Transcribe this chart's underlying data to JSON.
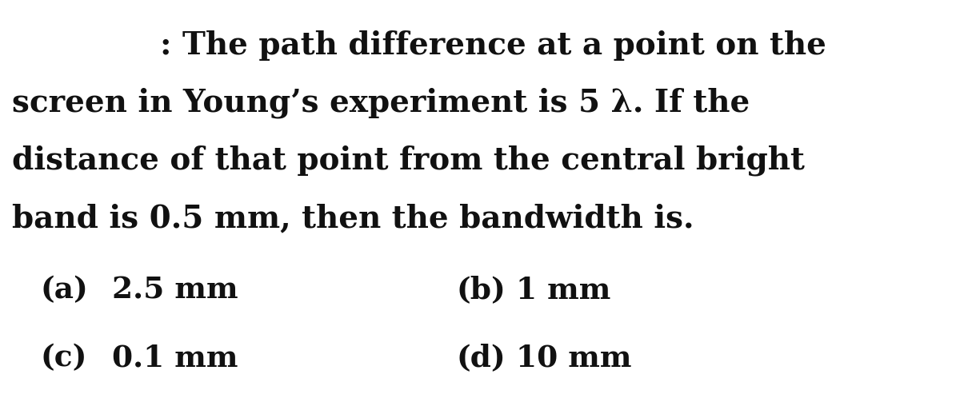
{
  "background_color": "#ffffff",
  "text_color": "#111111",
  "line1": ": The path difference at a point on the",
  "line2": "screen in Young’s experiment is 5 λ. If the",
  "line3": "distance of that point from the central bright",
  "line4": "band is 0.5 mm, then the bandwidth is.",
  "opt_a_label": "(a)",
  "opt_a_val": "2.5 mm",
  "opt_b_label": "(b)",
  "opt_b_val": "1 mm",
  "opt_c_label": "(c)",
  "opt_c_val": "0.1 mm",
  "opt_d_label": "(d)",
  "opt_d_val": "10 mm",
  "font_size_q": 28,
  "font_size_opt": 27
}
